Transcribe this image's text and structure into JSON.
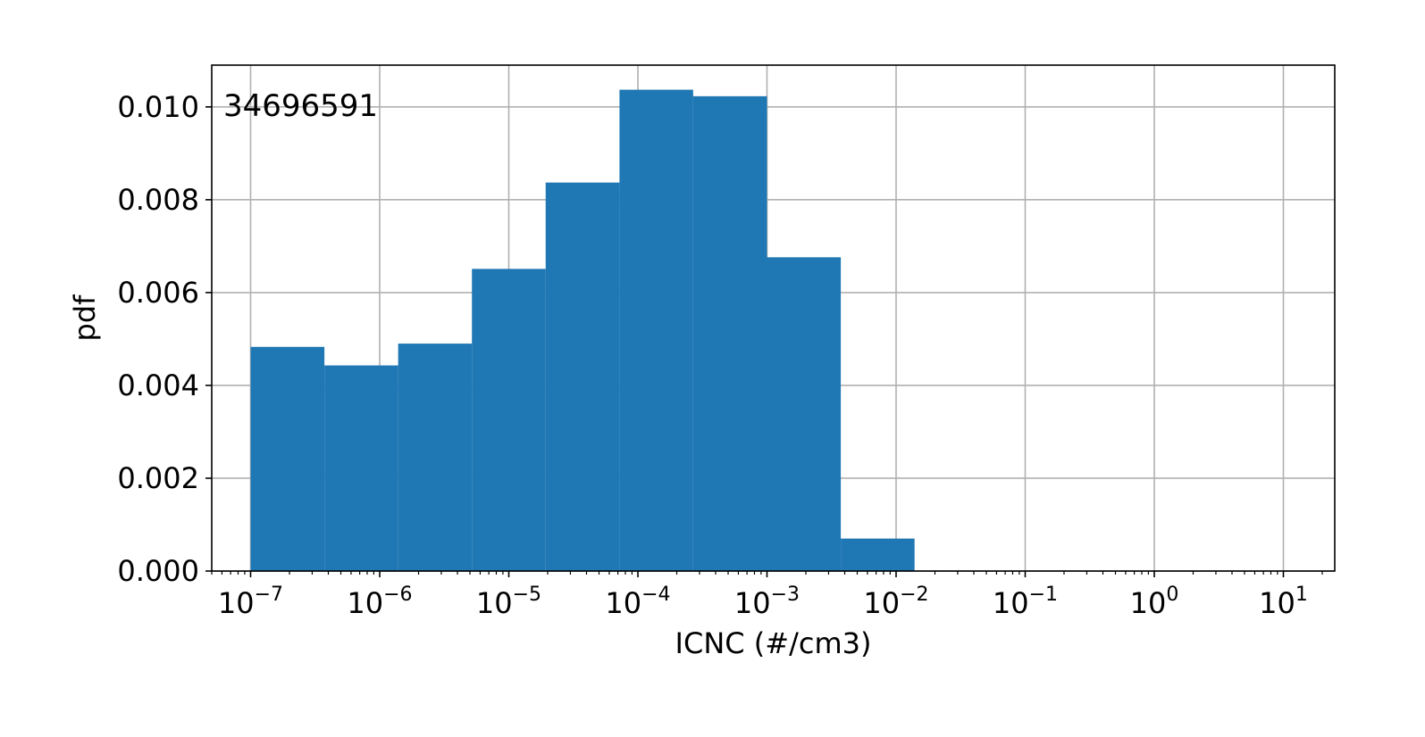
{
  "chart_data": {
    "type": "bar",
    "title": "",
    "xlabel": "ICNC (#/cm3)",
    "ylabel": "pdf",
    "annotation": "34696591",
    "x_scale": "log",
    "xlim": [
      5e-08,
      25
    ],
    "ylim": [
      0,
      0.0109
    ],
    "grid": true,
    "bar_color": "#1f77b4",
    "x_ticks": [
      {
        "value": 1e-07,
        "base": "10",
        "exp": "−7"
      },
      {
        "value": 1e-06,
        "base": "10",
        "exp": "−6"
      },
      {
        "value": 1e-05,
        "base": "10",
        "exp": "−5"
      },
      {
        "value": 0.0001,
        "base": "10",
        "exp": "−4"
      },
      {
        "value": 0.001,
        "base": "10",
        "exp": "−3"
      },
      {
        "value": 0.01,
        "base": "10",
        "exp": "−2"
      },
      {
        "value": 0.1,
        "base": "10",
        "exp": "−1"
      },
      {
        "value": 1,
        "base": "10",
        "exp": "0"
      },
      {
        "value": 10,
        "base": "10",
        "exp": "1"
      }
    ],
    "y_ticks": [
      {
        "value": 0.0,
        "label": "0.000"
      },
      {
        "value": 0.002,
        "label": "0.002"
      },
      {
        "value": 0.004,
        "label": "0.004"
      },
      {
        "value": 0.006,
        "label": "0.006"
      },
      {
        "value": 0.008,
        "label": "0.008"
      },
      {
        "value": 0.01,
        "label": "0.010"
      }
    ],
    "bins": [
      {
        "x0": 1e-07,
        "x1": 3.73e-07,
        "value": 0.00483
      },
      {
        "x0": 3.73e-07,
        "x1": 1.39e-06,
        "value": 0.00443
      },
      {
        "x0": 1.39e-06,
        "x1": 5.18e-06,
        "value": 0.0049
      },
      {
        "x0": 5.18e-06,
        "x1": 1.93e-05,
        "value": 0.00651
      },
      {
        "x0": 1.93e-05,
        "x1": 7.2e-05,
        "value": 0.00837
      },
      {
        "x0": 7.2e-05,
        "x1": 0.000268,
        "value": 0.01037
      },
      {
        "x0": 0.000268,
        "x1": 0.001,
        "value": 0.01023
      },
      {
        "x0": 0.001,
        "x1": 0.00373,
        "value": 0.00676
      },
      {
        "x0": 0.00373,
        "x1": 0.0139,
        "value": 0.0007
      }
    ]
  }
}
